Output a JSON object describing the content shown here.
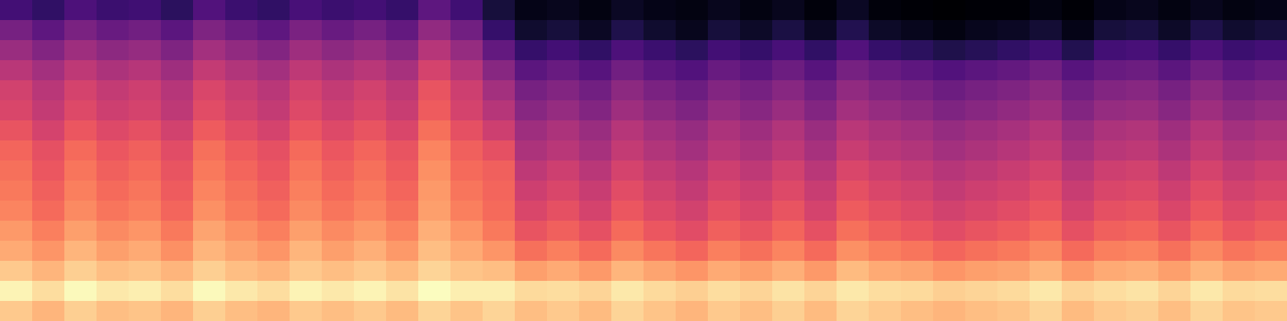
{
  "chart_data": {
    "type": "heatmap",
    "color": "magma",
    "tick_labels": false,
    "cells": [
      [
        22,
        18,
        24,
        20,
        21,
        17,
        25,
        20,
        18,
        23,
        20,
        22,
        19,
        28,
        21,
        12,
        6,
        7,
        5,
        8,
        6,
        5,
        7,
        5,
        7,
        4,
        8,
        4,
        3,
        2,
        3,
        3,
        5,
        3,
        6,
        7,
        5,
        7,
        5,
        6
      ],
      [
        33,
        28,
        34,
        30,
        32,
        27,
        35,
        31,
        28,
        34,
        30,
        33,
        29,
        39,
        32,
        19,
        10,
        12,
        8,
        14,
        10,
        7,
        12,
        9,
        13,
        8,
        15,
        9,
        7,
        5,
        7,
        8,
        11,
        6,
        12,
        13,
        9,
        14,
        10,
        12
      ],
      [
        41,
        36,
        42,
        38,
        40,
        35,
        43,
        39,
        36,
        42,
        38,
        41,
        37,
        47,
        40,
        29,
        19,
        22,
        18,
        24,
        20,
        17,
        22,
        19,
        23,
        18,
        25,
        19,
        17,
        14,
        16,
        18,
        21,
        15,
        22,
        23,
        19,
        24,
        20,
        22
      ],
      [
        48,
        43,
        49,
        45,
        47,
        42,
        50,
        46,
        43,
        49,
        45,
        48,
        44,
        54,
        47,
        37,
        27,
        30,
        26,
        32,
        28,
        25,
        30,
        27,
        31,
        26,
        33,
        30,
        28,
        25,
        27,
        29,
        32,
        26,
        30,
        31,
        27,
        32,
        28,
        30
      ],
      [
        53,
        48,
        54,
        50,
        52,
        47,
        55,
        51,
        48,
        54,
        50,
        53,
        49,
        59,
        52,
        43,
        33,
        36,
        32,
        38,
        34,
        31,
        36,
        33,
        37,
        32,
        39,
        36,
        34,
        31,
        33,
        35,
        38,
        32,
        36,
        37,
        33,
        38,
        34,
        36
      ],
      [
        55,
        50,
        56,
        52,
        54,
        49,
        57,
        53,
        50,
        56,
        52,
        55,
        51,
        61,
        54,
        47,
        37,
        40,
        36,
        42,
        38,
        35,
        40,
        37,
        41,
        36,
        43,
        40,
        38,
        35,
        37,
        39,
        42,
        36,
        40,
        41,
        37,
        42,
        38,
        40
      ],
      [
        59,
        54,
        60,
        56,
        58,
        53,
        61,
        57,
        54,
        60,
        56,
        59,
        55,
        65,
        58,
        52,
        42,
        45,
        41,
        47,
        43,
        40,
        45,
        42,
        46,
        41,
        48,
        45,
        43,
        40,
        42,
        44,
        47,
        41,
        45,
        46,
        42,
        47,
        43,
        45
      ],
      [
        63,
        58,
        64,
        60,
        62,
        57,
        65,
        61,
        58,
        64,
        60,
        63,
        59,
        69,
        62,
        58,
        45,
        48,
        44,
        50,
        46,
        43,
        48,
        45,
        49,
        44,
        51,
        48,
        46,
        43,
        45,
        47,
        50,
        44,
        48,
        49,
        45,
        50,
        46,
        48
      ],
      [
        65,
        60,
        66,
        62,
        64,
        59,
        67,
        63,
        60,
        66,
        62,
        65,
        61,
        71,
        64,
        62,
        49,
        52,
        48,
        54,
        50,
        47,
        52,
        49,
        53,
        48,
        55,
        52,
        50,
        47,
        49,
        51,
        54,
        48,
        52,
        53,
        49,
        54,
        50,
        52
      ],
      [
        67,
        62,
        68,
        64,
        66,
        61,
        69,
        65,
        62,
        68,
        64,
        67,
        63,
        73,
        66,
        63,
        52,
        55,
        51,
        57,
        53,
        50,
        55,
        52,
        56,
        51,
        58,
        55,
        53,
        50,
        52,
        54,
        57,
        51,
        55,
        56,
        52,
        57,
        53,
        55
      ],
      [
        69,
        64,
        70,
        66,
        68,
        63,
        71,
        67,
        64,
        70,
        66,
        69,
        65,
        74,
        68,
        64,
        55,
        58,
        54,
        60,
        56,
        53,
        58,
        55,
        59,
        54,
        61,
        58,
        56,
        53,
        55,
        57,
        60,
        54,
        58,
        59,
        55,
        60,
        56,
        58
      ],
      [
        73,
        68,
        74,
        70,
        72,
        67,
        75,
        71,
        68,
        74,
        70,
        73,
        69,
        77,
        72,
        67,
        59,
        62,
        58,
        64,
        60,
        57,
        62,
        59,
        63,
        58,
        65,
        62,
        60,
        57,
        59,
        61,
        64,
        58,
        62,
        63,
        59,
        64,
        60,
        62
      ],
      [
        76,
        72,
        78,
        74,
        76,
        71,
        78,
        75,
        72,
        78,
        74,
        77,
        73,
        80,
        76,
        72,
        65,
        68,
        64,
        70,
        66,
        63,
        68,
        65,
        69,
        64,
        71,
        68,
        66,
        63,
        65,
        67,
        70,
        64,
        68,
        69,
        65,
        70,
        66,
        68
      ],
      [
        82,
        78,
        83,
        80,
        81,
        78,
        83,
        80,
        78,
        82,
        80,
        82,
        79,
        84,
        81,
        80,
        74,
        76,
        73,
        78,
        75,
        72,
        76,
        74,
        77,
        73,
        79,
        76,
        75,
        72,
        74,
        75,
        78,
        73,
        76,
        77,
        74,
        78,
        75,
        76
      ],
      [
        90,
        86,
        91,
        88,
        89,
        86,
        91,
        88,
        86,
        90,
        88,
        90,
        87,
        92,
        89,
        89,
        85,
        86,
        84,
        88,
        85,
        83,
        86,
        84,
        87,
        84,
        88,
        86,
        85,
        83,
        84,
        85,
        88,
        84,
        86,
        87,
        84,
        88,
        85,
        86
      ],
      [
        82,
        78,
        83,
        80,
        81,
        78,
        83,
        80,
        78,
        82,
        80,
        82,
        79,
        84,
        81,
        84,
        80,
        82,
        79,
        84,
        81,
        78,
        82,
        80,
        83,
        79,
        84,
        82,
        80,
        78,
        80,
        81,
        84,
        79,
        82,
        83,
        80,
        84,
        81,
        82
      ]
    ]
  }
}
